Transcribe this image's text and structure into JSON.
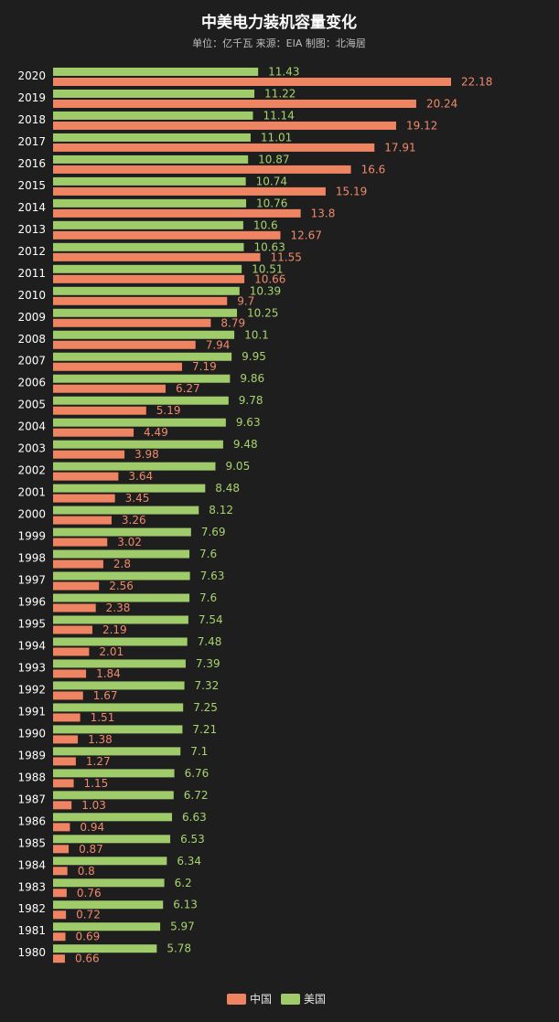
{
  "chart_data": {
    "type": "bar",
    "orientation": "horizontal",
    "title": "中美电力装机容量变化",
    "subtitle": "单位：亿千瓦 来源：EIA  制图：北海居",
    "categories": [
      "2020",
      "2019",
      "2018",
      "2017",
      "2016",
      "2015",
      "2014",
      "2013",
      "2012",
      "2011",
      "2010",
      "2009",
      "2008",
      "2007",
      "2006",
      "2005",
      "2004",
      "2003",
      "2002",
      "2001",
      "2000",
      "1999",
      "1998",
      "1997",
      "1996",
      "1995",
      "1994",
      "1993",
      "1992",
      "1991",
      "1990",
      "1989",
      "1988",
      "1987",
      "1986",
      "1985",
      "1984",
      "1983",
      "1982",
      "1981",
      "1980"
    ],
    "series": [
      {
        "name": "美国",
        "color": "#9fcb6a",
        "values": [
          11.43,
          11.22,
          11.14,
          11.01,
          10.87,
          10.74,
          10.76,
          10.6,
          10.63,
          10.51,
          10.39,
          10.25,
          10.1,
          9.95,
          9.86,
          9.78,
          9.63,
          9.48,
          9.05,
          8.48,
          8.12,
          7.69,
          7.6,
          7.63,
          7.6,
          7.54,
          7.48,
          7.39,
          7.32,
          7.25,
          7.21,
          7.1,
          6.76,
          6.72,
          6.63,
          6.53,
          6.34,
          6.2,
          6.13,
          5.97,
          5.78
        ]
      },
      {
        "name": "中国",
        "color": "#ee8462",
        "values": [
          22.18,
          20.24,
          19.12,
          17.91,
          16.6,
          15.19,
          13.8,
          12.67,
          11.55,
          10.66,
          9.7,
          8.79,
          7.94,
          7.19,
          6.27,
          5.19,
          4.49,
          3.98,
          3.64,
          3.45,
          3.26,
          3.02,
          2.8,
          2.56,
          2.38,
          2.19,
          2.01,
          1.84,
          1.67,
          1.51,
          1.38,
          1.27,
          1.15,
          1.03,
          0.94,
          0.87,
          0.8,
          0.76,
          0.72,
          0.69,
          0.66
        ]
      }
    ],
    "legend": {
      "position": "bottom-center",
      "order": [
        "中国",
        "美国"
      ]
    },
    "grid": false,
    "xlim": [
      0,
      22.18
    ]
  }
}
